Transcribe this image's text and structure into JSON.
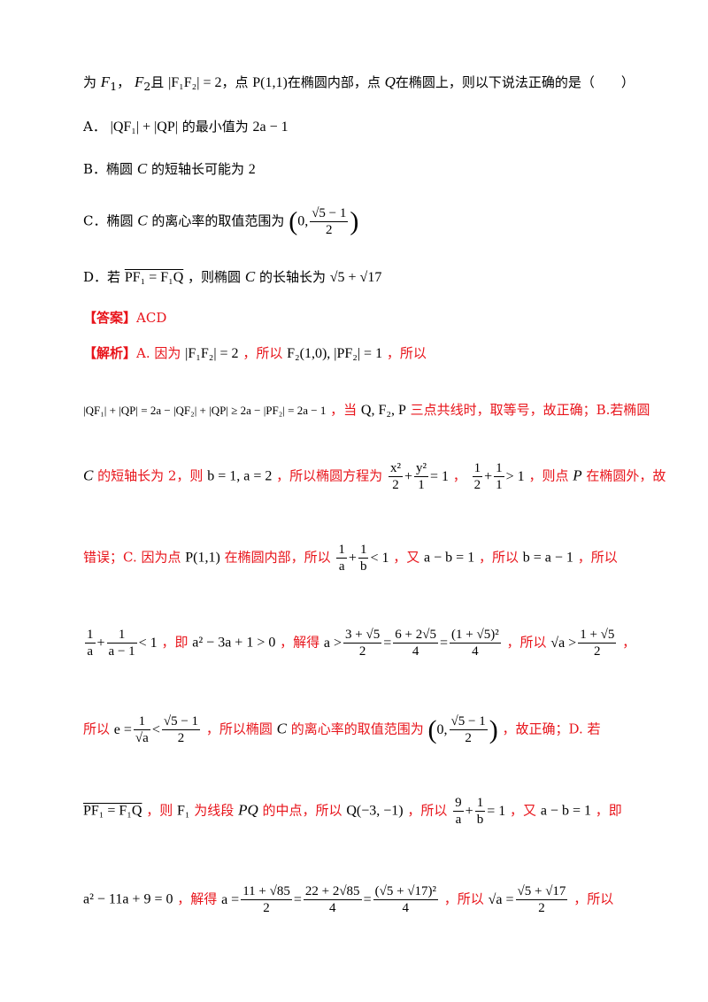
{
  "q_line1": {
    "a": "为",
    "f1": "F",
    "s1": "1",
    "b": "，",
    "f2": "F",
    "s2": "2",
    "c": "且",
    "m1": "|F₁F₂| = 2",
    "d": "，点",
    "m2": "P(1,1)",
    "e": "在椭圆内部，点",
    "m3": "Q",
    "f": "在椭圆上，则以下说法正确的是（　　）"
  },
  "opt_a": {
    "label": "A．",
    "m1": "|QF₁| + |QP|",
    "t1": "的最小值为",
    "m2": "2a − 1"
  },
  "opt_b": {
    "label": "B．椭圆",
    "m1": "C",
    "t1": "的短轴长可能为",
    "m2": "2"
  },
  "opt_c": {
    "label": "C．椭圆",
    "m1": "C",
    "t1": "的离心率的取值范围为",
    "m_pre": "0,",
    "num": "√5 − 1",
    "den": "2"
  },
  "opt_d": {
    "label": "D．若",
    "m1": "PF₁ = F₁Q",
    "t1": "，则椭圆",
    "m2": "C",
    "t2": "的长轴长为",
    "m3": "√5 + √17"
  },
  "answer": {
    "tag": "【答案】",
    "value": "ACD"
  },
  "sol1": {
    "tag": "【解析】",
    "t1": "A. 因为",
    "m1": "|F₁F₂| = 2",
    "t2": "，所以",
    "m2": "F₂(1,0), |PF₂| = 1",
    "t3": "，所以"
  },
  "sol2": {
    "m1": "|QF₁| + |QP| = 2a − |QF₂| + |QP| ≥ 2a − |PF₂| = 2a − 1",
    "t1": "，当",
    "m2": "Q, F₂, P",
    "t2": "三点共线时，取等号，故正确；B.若椭圆"
  },
  "sol3": {
    "m1": "C",
    "t1": "的短轴长为 2，则",
    "m2": "b = 1, a = 2",
    "t2": "，所以椭圆方程为",
    "n1": "x²",
    "d1": "2",
    "plus": "+",
    "n2": "y²",
    "d2": "1",
    "eq": "= 1",
    "t3": "，",
    "n3": "1",
    "d3": "2",
    "n4": "1",
    "d4": "1",
    "gt": "> 1",
    "t4": "，则点",
    "m3": "P",
    "t5": "在椭圆外，故"
  },
  "sol4": {
    "t1": "错误；C. 因为点",
    "m1": "P(1,1)",
    "t2": "在椭圆内部，所以",
    "n1": "1",
    "d1": "a",
    "n2": "1",
    "d2": "b",
    "lt": "< 1",
    "t3": "，又",
    "m2": "a − b = 1",
    "t4": "，所以",
    "m3": "b = a − 1",
    "t5": "，所以"
  },
  "sol5": {
    "n1": "1",
    "d1": "a",
    "n2": "1",
    "d2": "a − 1",
    "lt": "< 1",
    "t1": "，即",
    "m1": "a² − 3a + 1 > 0",
    "t2": "，解得",
    "m2": "a >",
    "n3": "3 + √5",
    "d3": "2",
    "n4": "6 + 2√5",
    "d4": "4",
    "n5": "(1 + √5)²",
    "d5": "4",
    "t3": "，所以",
    "m3": "√a >",
    "n6": "1 + √5",
    "d6": "2",
    "t4": "，"
  },
  "sol6": {
    "t1": "所以",
    "m1": "e =",
    "n1": "1",
    "d1": "√a",
    "lt": "<",
    "n2": "√5 − 1",
    "d2": "2",
    "t2": "，所以椭圆",
    "m2": "C",
    "t3": "的离心率的取值范围为",
    "pre": "0,",
    "n3": "√5 − 1",
    "d3": "2",
    "t4": "，故正确；D. 若"
  },
  "sol7": {
    "m1": "PF₁ = F₁Q",
    "t1": "，则",
    "m2": "F₁",
    "t2": "为线段",
    "m3": "PQ",
    "t3": "的中点，所以",
    "m4": "Q(−3, −1)",
    "t4": "，所以",
    "n1": "9",
    "d1": "a",
    "n2": "1",
    "d2": "b",
    "eq": "= 1",
    "t5": "，又",
    "m5": "a − b = 1",
    "t6": "，即"
  },
  "sol8": {
    "m1": "a² − 11a + 9 = 0",
    "t1": "，解得",
    "m2": "a =",
    "n1": "11 + √85",
    "d1": "2",
    "n2": "22 + 2√85",
    "d2": "4",
    "n3": "(√5 + √17)²",
    "d3": "4",
    "t2": "，所以",
    "m3": "√a =",
    "n4": "√5 + √17",
    "d4": "2",
    "t3": "，所以"
  }
}
